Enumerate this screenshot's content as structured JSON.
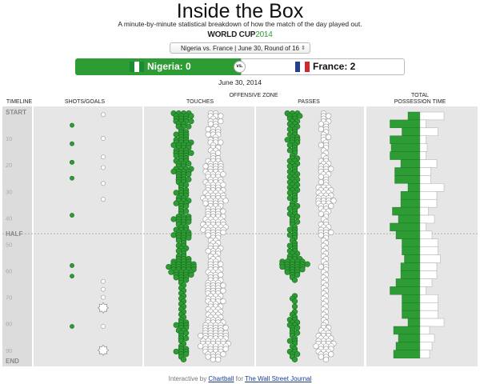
{
  "page": {
    "title": "Inside the Box",
    "subtitle": "A minute-by-minute statistical breakdown of how the match of the day played out.",
    "brand_main": "WORLD CUP",
    "brand_year": "2014",
    "match_select": "Nigeria vs. France | June 30, Round of 16",
    "date": "June 30, 2014",
    "vs": "vs."
  },
  "teams": {
    "home": {
      "label": "Nigeria: 0",
      "color": "#2e9c34"
    },
    "away": {
      "label": "France: 2",
      "color": "#ffffff"
    }
  },
  "headers": {
    "timeline": "TIMELINE",
    "shots": "SHOTS/GOALS",
    "offensive_zone": "OFFENSIVE ZONE",
    "touches": "TOUCHES",
    "passes": "PASSES",
    "possession_1": "TOTAL",
    "possession_2": "POSSESSION TIME"
  },
  "footer": {
    "prefix": "Interactive by",
    "author": "Chartball",
    "middle": "for",
    "publisher": "The Wall Street Journal"
  },
  "chart_data": {
    "type": "timeline",
    "minutes_max": 94,
    "timeline_labels": [
      {
        "text": "START",
        "minute": 0,
        "bold": true
      },
      {
        "text": "10",
        "minute": 10
      },
      {
        "text": "20",
        "minute": 20
      },
      {
        "text": "30",
        "minute": 30
      },
      {
        "text": "40",
        "minute": 40
      },
      {
        "text": "HALF",
        "minute": 46,
        "bold": true
      },
      {
        "text": "50",
        "minute": 50
      },
      {
        "text": "60",
        "minute": 60
      },
      {
        "text": "70",
        "minute": 70
      },
      {
        "text": "80",
        "minute": 80
      },
      {
        "text": "90",
        "minute": 90
      },
      {
        "text": "END",
        "minute": 94,
        "bold": true
      }
    ],
    "half_minute": 46,
    "colors": {
      "home": "#2e9c34",
      "away": "#ffffff"
    },
    "shots": {
      "home": [
        5,
        12,
        19,
        19,
        25,
        39,
        58,
        62,
        81
      ],
      "away": [
        1,
        10,
        17,
        21,
        27,
        33,
        64,
        67,
        70,
        74,
        81
      ],
      "away_goals": [
        74,
        90
      ]
    },
    "touches": {
      "home": [
        4,
        4,
        3,
        4,
        2,
        3,
        1,
        2,
        3,
        2,
        3,
        4,
        4,
        3,
        3,
        4,
        3,
        2,
        3,
        3,
        2,
        4,
        4,
        3,
        2,
        3,
        2,
        2,
        1,
        2,
        3,
        2,
        2,
        3,
        3,
        2,
        1,
        2,
        1,
        3,
        4,
        3,
        2,
        2,
        3,
        3,
        4,
        3,
        2,
        1,
        2,
        2,
        2,
        1,
        2,
        3,
        4,
        5,
        6,
        5,
        5,
        4,
        3,
        2,
        1,
        1,
        1,
        1,
        1,
        1,
        1,
        1,
        1,
        1,
        1,
        1,
        1,
        1,
        1,
        2,
        3,
        2,
        2,
        2,
        1,
        2,
        1,
        1,
        1,
        2,
        3,
        2,
        1,
        1
      ],
      "away": [
        2,
        3,
        1,
        3,
        2,
        1,
        3,
        2,
        3,
        1,
        2,
        3,
        1,
        2,
        2,
        2,
        1,
        2,
        3,
        3,
        4,
        3,
        4,
        4,
        3,
        3,
        4,
        4,
        3,
        4,
        4,
        4,
        5,
        5,
        4,
        3,
        3,
        4,
        3,
        4,
        4,
        4,
        5,
        5,
        5,
        4,
        3,
        2,
        2,
        2,
        2,
        3,
        3,
        2,
        2,
        2,
        2,
        3,
        2,
        3,
        3,
        3,
        2,
        3,
        3,
        4,
        3,
        4,
        3,
        3,
        3,
        4,
        2,
        3,
        3,
        3,
        3,
        3,
        3,
        4,
        4,
        5,
        4,
        5,
        6,
        5,
        5,
        6,
        6,
        5,
        4,
        4,
        3,
        2
      ]
    },
    "passes": {
      "home": [
        3,
        3,
        2,
        2,
        2,
        2,
        2,
        1,
        2,
        2,
        3,
        2,
        2,
        1,
        2,
        1,
        1,
        2,
        2,
        2,
        2,
        1,
        2,
        2,
        2,
        2,
        2,
        2,
        2,
        2,
        2,
        1,
        2,
        1,
        1,
        2,
        2,
        1,
        2,
        2,
        1,
        2,
        1,
        1,
        2,
        1,
        2,
        1,
        1,
        1,
        2,
        1,
        2,
        2,
        2,
        3,
        5,
        6,
        5,
        4,
        3,
        2,
        1,
        1,
        0,
        0,
        0,
        0,
        0,
        1,
        1,
        1,
        0,
        1,
        0,
        1,
        1,
        1,
        2,
        2,
        2,
        2,
        1,
        2,
        1,
        1,
        2,
        1,
        1,
        1,
        2,
        2,
        1,
        1
      ],
      "away": [
        1,
        2,
        1,
        2,
        2,
        1,
        2,
        1,
        1,
        2,
        1,
        1,
        2,
        1,
        1,
        1,
        1,
        1,
        2,
        2,
        2,
        3,
        2,
        2,
        2,
        1,
        2,
        1,
        3,
        3,
        3,
        3,
        3,
        4,
        3,
        3,
        2,
        2,
        2,
        1,
        1,
        1,
        2,
        2,
        2,
        3,
        2,
        1,
        1,
        1,
        1,
        1,
        1,
        1,
        1,
        1,
        1,
        1,
        2,
        1,
        1,
        1,
        1,
        1,
        1,
        1,
        1,
        1,
        1,
        1,
        1,
        1,
        1,
        1,
        1,
        1,
        1,
        1,
        1,
        1,
        1,
        2,
        2,
        2,
        3,
        3,
        3,
        4,
        4,
        3,
        3,
        3,
        2,
        1
      ]
    },
    "possession_bins_minutes": 3,
    "possession_home": [
      1.0,
      2.5,
      1.5,
      2.5,
      2.4,
      2.5,
      1.6,
      2.1,
      2.1,
      1.0,
      1.6,
      1.6,
      2.3,
      1.8,
      2.5,
      2.0,
      1.5,
      1.5,
      1.3,
      1.6,
      1.6,
      2.0,
      2.5,
      1.5,
      1.5,
      1.5,
      1.0,
      2.2,
      1.8,
      2.0,
      2.2
    ],
    "possession_max": 3
  }
}
